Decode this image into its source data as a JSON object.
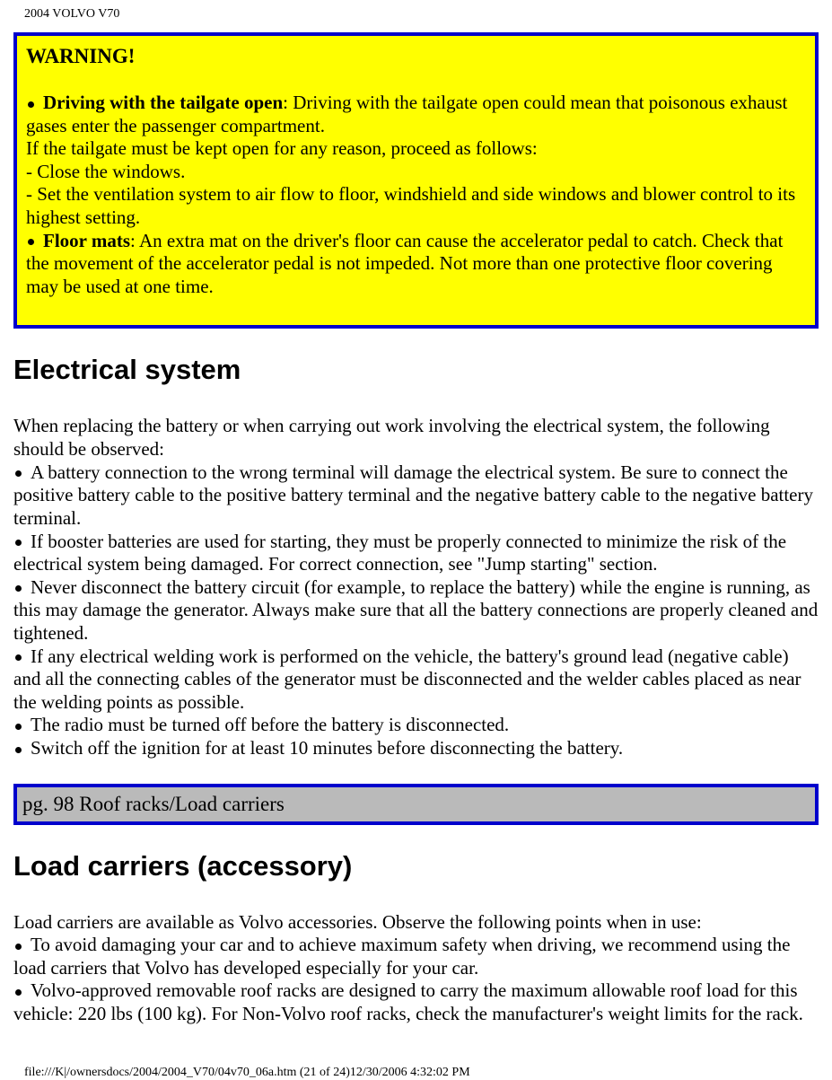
{
  "header": {
    "title": "2004 VOLVO V70"
  },
  "warning": {
    "title": "WARNING!",
    "item1_label": "Driving with the tailgate open",
    "item1_text": ": Driving with the tailgate open could mean that poisonous exhaust gases enter the passenger compartment.",
    "line2": "If the tailgate must be kept open for any reason, proceed as follows:",
    "line3": "- Close the windows.",
    "line4": "- Set the ventilation system to air flow to floor, windshield and side windows and blower control to its highest setting.",
    "item2_label": "Floor mats",
    "item2_text": ": An extra mat on the driver's floor can cause the accelerator pedal to catch. Check that the movement of the accelerator pedal is not impeded. Not more than one protective floor covering may be used at one time."
  },
  "electrical": {
    "heading": "Electrical system",
    "intro": "When replacing the battery or when carrying out work involving the electrical system, the following should be observed:",
    "b1": "A battery connection to the wrong terminal will damage the electrical system. Be sure to connect the positive battery cable to the positive battery terminal and the negative battery cable to the negative battery terminal.",
    "b2": "If booster batteries are used for starting, they must be properly connected to minimize the risk of the electrical system being damaged. For correct connection, see \"Jump starting\" section.",
    "b3": "Never disconnect the battery circuit (for example, to replace the battery) while the engine is running, as this may damage the generator. Always make sure that all the battery connections are properly cleaned and tightened.",
    "b4": "If any electrical welding work is performed on the vehicle, the battery's ground lead (negative cable) and all the connecting cables of the generator must be disconnected and the welder cables placed as near the welding points as possible.",
    "b5": "The radio must be turned off before the battery is disconnected.",
    "b6": "Switch off the ignition for at least 10 minutes before disconnecting the battery."
  },
  "page_marker": {
    "text": "pg. 98 Roof racks/Load carriers"
  },
  "load_carriers": {
    "heading": "Load carriers (accessory)",
    "intro": "Load carriers are available as Volvo accessories. Observe the following points when in use:",
    "b1": "To avoid damaging your car and to achieve maximum safety when driving, we recommend using the load carriers that Volvo has developed especially for your car.",
    "b2": "Volvo-approved removable roof racks are designed to carry the maximum allowable roof load for this vehicle: 220 lbs (100 kg). For Non-Volvo roof racks, check the manufacturer's weight limits for the rack."
  },
  "footer": {
    "text": "file:///K|/ownersdocs/2004/2004_V70/04v70_06a.htm (21 of 24)12/30/2006 4:32:02 PM"
  },
  "colors": {
    "warning_bg": "#ffff00",
    "border": "#0000cc",
    "pagemarker_bg": "#bababa",
    "text": "#000000",
    "page_bg": "#ffffff"
  }
}
